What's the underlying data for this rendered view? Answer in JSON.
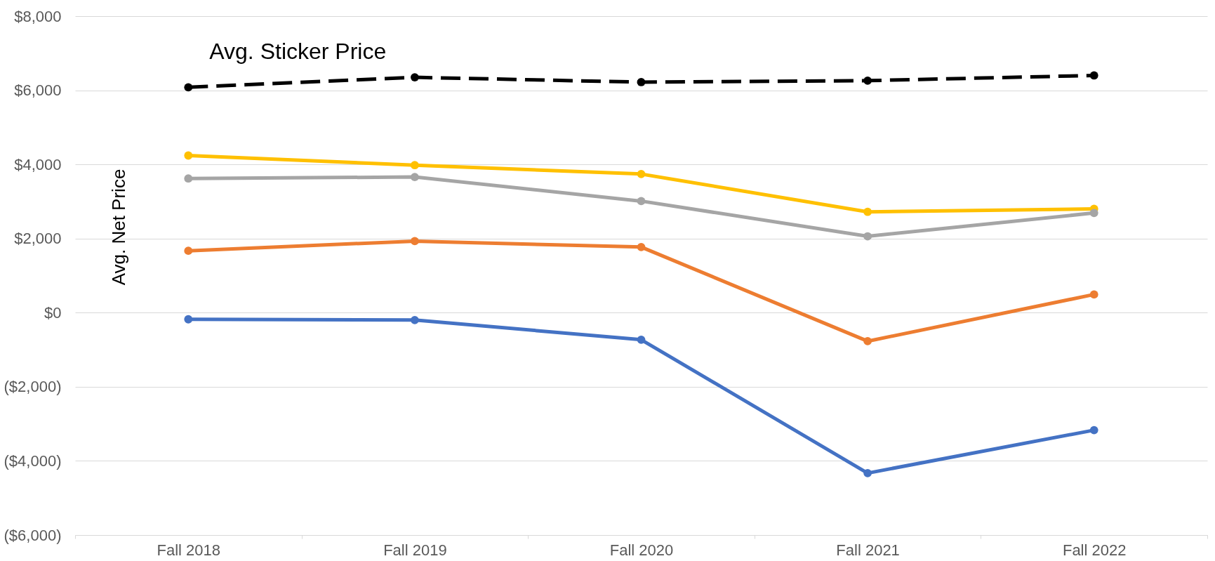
{
  "chart_data": {
    "type": "line",
    "ylabel": "Avg. Net Price",
    "categories": [
      "Fall 2018",
      "Fall 2019",
      "Fall 2020",
      "Fall 2021",
      "Fall 2022"
    ],
    "series": [
      {
        "name": "Avg. Sticker Price",
        "color": "#000000",
        "line_style": "dashed",
        "values": [
          6080,
          6350,
          6220,
          6260,
          6400
        ]
      },
      {
        "color": "#ffc000",
        "values": [
          4240,
          3980,
          3740,
          2720,
          2800
        ]
      },
      {
        "color": "#a5a5a5",
        "values": [
          3620,
          3660,
          3010,
          2060,
          2690
        ]
      },
      {
        "color": "#ed7d31",
        "values": [
          1670,
          1930,
          1770,
          -770,
          490
        ]
      },
      {
        "color": "#4472c4",
        "values": [
          -180,
          -200,
          -730,
          -4330,
          -3170
        ]
      }
    ],
    "ylim": [
      -6000,
      8000
    ],
    "yticks": [
      {
        "value": -6000,
        "label": "($6,000)"
      },
      {
        "value": -4000,
        "label": "($4,000)"
      },
      {
        "value": -2000,
        "label": "($2,000)"
      },
      {
        "value": 0,
        "label": "$0"
      },
      {
        "value": 2000,
        "label": "$2,000"
      },
      {
        "value": 4000,
        "label": "$4,000"
      },
      {
        "value": 6000,
        "label": "$6,000"
      },
      {
        "value": 8000,
        "label": "$8,000"
      }
    ],
    "grid": "y",
    "marker": "circle",
    "line_style": "solid"
  }
}
